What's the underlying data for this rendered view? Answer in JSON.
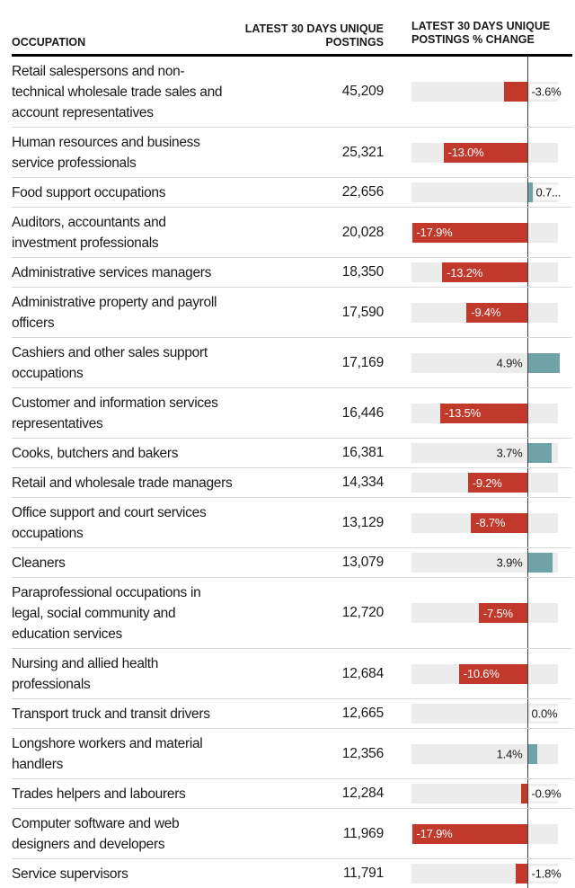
{
  "table": {
    "columns": {
      "occupation": "OCCUPATION",
      "postings": "LATEST 30 DAYS UNIQUE POSTINGS",
      "change": "LATEST 30 DAYS UNIQUE POSTINGS % CHANGE"
    }
  },
  "rows": [
    {
      "name": "Retail salespersons and non-technical wholesale trade sales and account representatives",
      "postings": "45,209",
      "change": -3.6,
      "change_label": "-3.6%",
      "label_side": "after-zero"
    },
    {
      "name": "Human resources and business service professionals",
      "postings": "25,321",
      "change": -13.0,
      "change_label": "-13.0%",
      "label_side": "inside"
    },
    {
      "name": "Food support occupations",
      "postings": "22,656",
      "change": 0.7,
      "change_label": "0.7...",
      "label_side": "after-bar"
    },
    {
      "name": "Auditors, accountants and investment professionals",
      "postings": "20,028",
      "change": -17.9,
      "change_label": "-17.9%",
      "label_side": "inside"
    },
    {
      "name": "Administrative services managers",
      "postings": "18,350",
      "change": -13.2,
      "change_label": "-13.2%",
      "label_side": "inside"
    },
    {
      "name": "Administrative property and payroll officers",
      "postings": "17,590",
      "change": -9.4,
      "change_label": "-9.4%",
      "label_side": "inside"
    },
    {
      "name": "Cashiers and other sales support occupations",
      "postings": "17,169",
      "change": 4.9,
      "change_label": "4.9%",
      "label_side": "before-zero"
    },
    {
      "name": "Customer and information services representatives",
      "postings": "16,446",
      "change": -13.5,
      "change_label": "-13.5%",
      "label_side": "inside"
    },
    {
      "name": "Cooks, butchers and bakers",
      "postings": "16,381",
      "change": 3.7,
      "change_label": "3.7%",
      "label_side": "before-zero"
    },
    {
      "name": "Retail and wholesale trade managers",
      "postings": "14,334",
      "change": -9.2,
      "change_label": "-9.2%",
      "label_side": "inside"
    },
    {
      "name": "Office support and court services occupations",
      "postings": "13,129",
      "change": -8.7,
      "change_label": "-8.7%",
      "label_side": "inside"
    },
    {
      "name": "Cleaners",
      "postings": "13,079",
      "change": 3.9,
      "change_label": "3.9%",
      "label_side": "before-zero"
    },
    {
      "name": "Paraprofessional occupations in legal, social community and education services",
      "postings": "12,720",
      "change": -7.5,
      "change_label": "-7.5%",
      "label_side": "inside"
    },
    {
      "name": "Nursing and allied health professionals",
      "postings": "12,684",
      "change": -10.6,
      "change_label": "-10.6%",
      "label_side": "inside"
    },
    {
      "name": "Transport truck and transit drivers",
      "postings": "12,665",
      "change": 0.0,
      "change_label": "0.0%",
      "label_side": "after-zero"
    },
    {
      "name": "Longshore workers and material handlers",
      "postings": "12,356",
      "change": 1.4,
      "change_label": "1.4%",
      "label_side": "before-zero"
    },
    {
      "name": "Trades helpers and labourers",
      "postings": "12,284",
      "change": -0.9,
      "change_label": "-0.9%",
      "label_side": "after-zero"
    },
    {
      "name": "Computer software and web designers and developers",
      "postings": "11,969",
      "change": -17.9,
      "change_label": "-17.9%",
      "label_side": "inside"
    },
    {
      "name": "Service supervisors",
      "postings": "11,791",
      "change": -1.8,
      "change_label": "-1.8%",
      "label_side": "after-zero"
    }
  ],
  "chart_data": {
    "type": "bar",
    "orientation": "horizontal",
    "categories": [
      "Retail salespersons and non-technical wholesale trade sales and account representatives",
      "Human resources and business service professionals",
      "Food support occupations",
      "Auditors, accountants and investment professionals",
      "Administrative services managers",
      "Administrative property and payroll officers",
      "Cashiers and other sales support occupations",
      "Customer and information services representatives",
      "Cooks, butchers and bakers",
      "Retail and wholesale trade managers",
      "Office support and court services occupations",
      "Cleaners",
      "Paraprofessional occupations in legal, social community and education services",
      "Nursing and allied health professionals",
      "Transport truck and transit drivers",
      "Longshore workers and material handlers",
      "Trades helpers and labourers",
      "Computer software and web designers and developers",
      "Service supervisors"
    ],
    "series": [
      {
        "name": "Latest 30 days unique postings",
        "values": [
          45209,
          25321,
          22656,
          20028,
          18350,
          17590,
          17169,
          16446,
          16381,
          14334,
          13129,
          13079,
          12720,
          12684,
          12665,
          12356,
          12284,
          11969,
          11791
        ]
      },
      {
        "name": "Latest 30 days unique postings % change",
        "values": [
          -3.6,
          -13.0,
          0.7,
          -17.9,
          -13.2,
          -9.4,
          4.9,
          -13.5,
          3.7,
          -9.2,
          -8.7,
          3.9,
          -7.5,
          -10.6,
          0.0,
          1.4,
          -0.9,
          -17.9,
          -1.8
        ]
      }
    ],
    "xlim": [
      -17.9,
      4.9
    ],
    "grid": false,
    "legend": false,
    "colors": {
      "negative_bar": "#c0392b",
      "positive_bar": "#6fa3a8",
      "track": "#ececec",
      "zero_line": "#3f3f3f"
    }
  }
}
